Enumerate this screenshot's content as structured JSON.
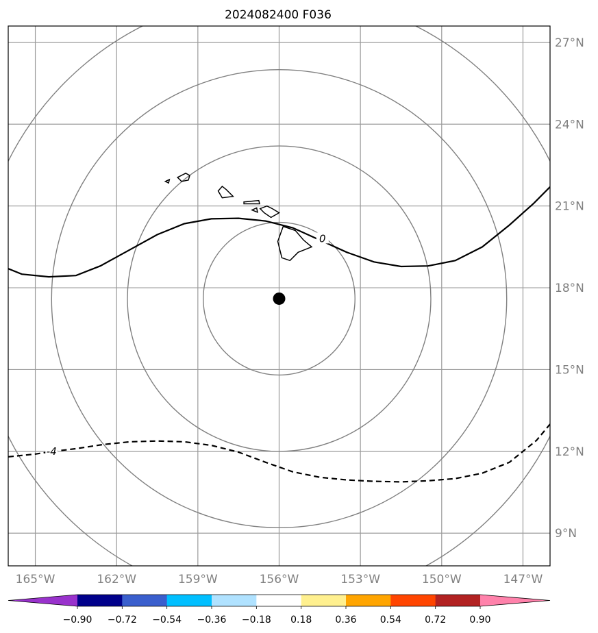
{
  "title": "2024082400 F036",
  "map": {
    "projection": "geographic",
    "lon_range": [
      -166.0,
      -146.0
    ],
    "lat_range": [
      7.8,
      27.6
    ],
    "lon_ticks": [
      {
        "value": -165,
        "label": "165°W"
      },
      {
        "value": -162,
        "label": "162°W"
      },
      {
        "value": -159,
        "label": "159°W"
      },
      {
        "value": -156,
        "label": "156°W"
      },
      {
        "value": -153,
        "label": "153°W"
      },
      {
        "value": -150,
        "label": "150°W"
      },
      {
        "value": -147,
        "label": "147°W"
      }
    ],
    "lat_ticks": [
      {
        "value": 9,
        "label": "9°N"
      },
      {
        "value": 12,
        "label": "12°N"
      },
      {
        "value": 15,
        "label": "15°N"
      },
      {
        "value": 18,
        "label": "18°N"
      },
      {
        "value": 21,
        "label": "21°N"
      },
      {
        "value": 24,
        "label": "24°N"
      },
      {
        "value": 27,
        "label": "27°N"
      }
    ],
    "center_point": {
      "lon": -156.0,
      "lat": 17.6
    },
    "range_rings_deg": [
      2.8,
      5.6,
      8.4,
      11.2
    ],
    "contours": [
      {
        "label": "0",
        "style": "solid",
        "label_at": {
          "lon": -154.4,
          "lat": 19.8
        },
        "points": [
          [
            -166.0,
            18.7
          ],
          [
            -165.5,
            18.5
          ],
          [
            -164.5,
            18.4
          ],
          [
            -163.5,
            18.45
          ],
          [
            -162.6,
            18.8
          ],
          [
            -161.5,
            19.4
          ],
          [
            -160.5,
            19.95
          ],
          [
            -159.5,
            20.35
          ],
          [
            -158.5,
            20.53
          ],
          [
            -157.5,
            20.55
          ],
          [
            -156.5,
            20.45
          ],
          [
            -155.5,
            20.2
          ],
          [
            -154.5,
            19.75
          ],
          [
            -153.5,
            19.3
          ],
          [
            -152.5,
            18.95
          ],
          [
            -151.5,
            18.78
          ],
          [
            -150.5,
            18.8
          ],
          [
            -149.5,
            19.0
          ],
          [
            -148.5,
            19.5
          ],
          [
            -147.5,
            20.3
          ],
          [
            -146.6,
            21.1
          ],
          [
            -146.0,
            21.7
          ]
        ]
      },
      {
        "label": "-4",
        "style": "dashed",
        "label_at": {
          "lon": -164.4,
          "lat": 11.99
        },
        "points": [
          [
            -166.0,
            11.8
          ],
          [
            -165.0,
            11.9
          ],
          [
            -164.4,
            11.99
          ],
          [
            -163.5,
            12.1
          ],
          [
            -162.5,
            12.25
          ],
          [
            -161.5,
            12.35
          ],
          [
            -160.5,
            12.38
          ],
          [
            -159.5,
            12.35
          ],
          [
            -158.5,
            12.22
          ],
          [
            -157.5,
            11.97
          ],
          [
            -156.5,
            11.6
          ],
          [
            -155.5,
            11.25
          ],
          [
            -154.5,
            11.05
          ],
          [
            -153.5,
            10.95
          ],
          [
            -152.5,
            10.9
          ],
          [
            -151.5,
            10.88
          ],
          [
            -150.5,
            10.92
          ],
          [
            -149.5,
            11.0
          ],
          [
            -148.5,
            11.2
          ],
          [
            -147.5,
            11.6
          ],
          [
            -146.5,
            12.4
          ],
          [
            -146.0,
            13.0
          ]
        ]
      }
    ],
    "islands": [
      {
        "name": "Niihau",
        "points": [
          [
            -160.2,
            21.9
          ],
          [
            -160.05,
            21.97
          ],
          [
            -160.08,
            21.84
          ],
          [
            -160.2,
            21.9
          ]
        ]
      },
      {
        "name": "Kauai",
        "points": [
          [
            -159.75,
            22.05
          ],
          [
            -159.45,
            22.2
          ],
          [
            -159.3,
            22.12
          ],
          [
            -159.35,
            21.95
          ],
          [
            -159.6,
            21.9
          ],
          [
            -159.75,
            22.05
          ]
        ]
      },
      {
        "name": "Oahu",
        "points": [
          [
            -158.25,
            21.55
          ],
          [
            -158.1,
            21.72
          ],
          [
            -157.95,
            21.6
          ],
          [
            -157.7,
            21.35
          ],
          [
            -158.1,
            21.3
          ],
          [
            -158.25,
            21.55
          ]
        ]
      },
      {
        "name": "Molokai",
        "points": [
          [
            -157.3,
            21.15
          ],
          [
            -156.75,
            21.2
          ],
          [
            -156.72,
            21.08
          ],
          [
            -157.3,
            21.08
          ],
          [
            -157.3,
            21.15
          ]
        ]
      },
      {
        "name": "Lanai",
        "points": [
          [
            -157.0,
            20.85
          ],
          [
            -156.83,
            20.93
          ],
          [
            -156.8,
            20.77
          ],
          [
            -157.0,
            20.85
          ]
        ]
      },
      {
        "name": "Maui",
        "points": [
          [
            -156.7,
            20.9
          ],
          [
            -156.45,
            21.0
          ],
          [
            -156.25,
            20.9
          ],
          [
            -156.0,
            20.75
          ],
          [
            -156.3,
            20.58
          ],
          [
            -156.55,
            20.75
          ],
          [
            -156.7,
            20.9
          ]
        ]
      },
      {
        "name": "Hawaii",
        "points": [
          [
            -155.85,
            20.25
          ],
          [
            -155.4,
            20.1
          ],
          [
            -155.1,
            19.75
          ],
          [
            -154.8,
            19.5
          ],
          [
            -155.3,
            19.3
          ],
          [
            -155.6,
            19.0
          ],
          [
            -155.9,
            19.1
          ],
          [
            -156.05,
            19.7
          ],
          [
            -155.85,
            20.25
          ]
        ]
      },
      {
        "name": "small-islet",
        "points": [
          [
            -154.55,
            19.9
          ],
          [
            -154.35,
            19.95
          ],
          [
            -154.4,
            19.72
          ],
          [
            -154.55,
            19.9
          ]
        ]
      }
    ]
  },
  "colorbar": {
    "ticks": [
      "−0.90",
      "−0.72",
      "−0.54",
      "−0.36",
      "−0.18",
      "0.18",
      "0.36",
      "0.54",
      "0.72",
      "0.90"
    ],
    "colors": [
      "#9932cc",
      "#00008b",
      "#3a5fcd",
      "#00bfff",
      "#b0e2ff",
      "#ffffff",
      "#fff08f",
      "#ffa500",
      "#ff4500",
      "#b22222",
      "#ff82ab"
    ]
  },
  "colors": {
    "grid": "#9a9a9a",
    "rings": "#808080",
    "tick_labels": "#808080",
    "contours": "#000000"
  }
}
